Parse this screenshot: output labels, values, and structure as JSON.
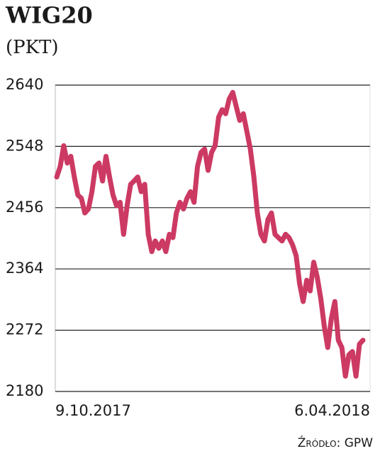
{
  "chart_data": {
    "type": "line",
    "title": "WIG20",
    "subtitle": "(PKT)",
    "source": "Źródło: GPW",
    "categories": [
      "9.10.2017",
      null,
      null,
      null,
      null,
      null,
      null,
      null,
      null,
      null,
      null,
      null,
      null,
      null,
      null,
      null,
      null,
      null,
      null,
      null,
      null,
      null,
      null,
      null,
      null,
      null,
      null,
      null,
      null,
      null,
      null,
      null,
      null,
      null,
      null,
      null,
      null,
      null,
      null,
      null,
      null,
      null,
      null,
      null,
      null,
      null,
      null,
      null,
      null,
      null,
      null,
      null,
      null,
      null,
      null,
      null,
      null,
      null,
      null,
      null,
      null,
      null,
      null,
      null,
      null,
      null,
      null,
      null,
      null,
      null,
      null,
      null,
      null,
      null,
      null,
      null,
      null,
      null,
      null,
      null,
      null,
      null,
      null,
      null,
      null,
      null,
      null,
      "6.04.2018"
    ],
    "series": [
      {
        "name": "WIG20",
        "color": "#cc3a63",
        "values": [
          2502,
          2518,
          2549,
          2523,
          2533,
          2502,
          2475,
          2470,
          2448,
          2454,
          2480,
          2518,
          2523,
          2496,
          2533,
          2502,
          2475,
          2459,
          2464,
          2416,
          2459,
          2491,
          2496,
          2502,
          2480,
          2491,
          2416,
          2390,
          2406,
          2395,
          2406,
          2390,
          2416,
          2411,
          2448,
          2464,
          2454,
          2470,
          2480,
          2464,
          2518,
          2539,
          2544,
          2512,
          2539,
          2549,
          2592,
          2603,
          2597,
          2619,
          2629,
          2608,
          2587,
          2597,
          2571,
          2544,
          2502,
          2448,
          2416,
          2406,
          2438,
          2448,
          2416,
          2411,
          2406,
          2416,
          2411,
          2400,
          2384,
          2342,
          2315,
          2347,
          2331,
          2374,
          2352,
          2320,
          2278,
          2246,
          2289,
          2315,
          2257,
          2246,
          2203,
          2235,
          2240,
          2203,
          2251,
          2257
        ]
      }
    ],
    "ylim": [
      2180,
      2640
    ],
    "yticks": [
      2180,
      2272,
      2364,
      2456,
      2548,
      2640
    ],
    "grid": true
  }
}
